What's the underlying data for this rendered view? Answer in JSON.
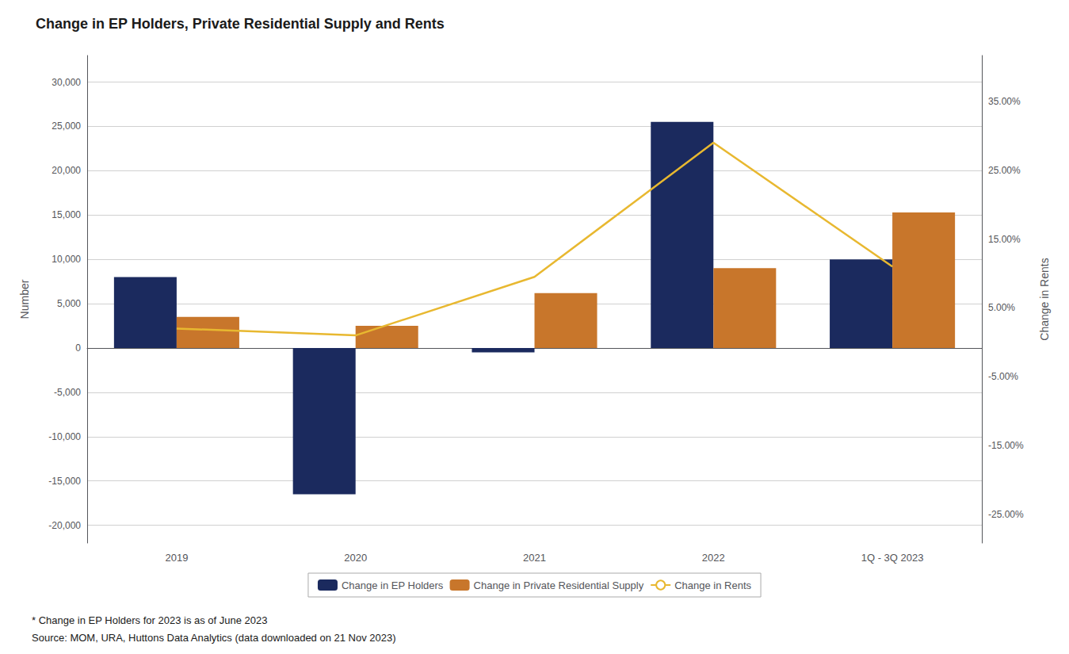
{
  "chart_data": {
    "type": "bar",
    "title": "Change in EP Holders, Private Residential Supply and Rents",
    "categories": [
      "2019",
      "2020",
      "2021",
      "2022",
      "1Q - 3Q 2023"
    ],
    "series": [
      {
        "name": "Change in EP Holders",
        "color": "#1b2a5e",
        "values": [
          8000,
          -16500,
          -500,
          25500,
          10000
        ]
      },
      {
        "name": "Change in Private Residential Supply",
        "color": "#c8762b",
        "values": [
          3500,
          2500,
          6200,
          9000,
          15300
        ]
      },
      {
        "name": "Change in Rents",
        "type": "line",
        "axis": "y2",
        "color": "#e8b830",
        "values": [
          0.02,
          0.01,
          0.095,
          0.29,
          0.11
        ]
      }
    ],
    "ylim": [
      -22000,
      33000
    ],
    "yticks": [
      {
        "value": -20000,
        "label": "-20,000"
      },
      {
        "value": -15000,
        "label": "-15,000"
      },
      {
        "value": -10000,
        "label": "-10,000"
      },
      {
        "value": -5000,
        "label": "-5,000"
      },
      0,
      {
        "value": 5000,
        "label": "5,000"
      },
      {
        "value": 10000,
        "label": "10,000"
      },
      {
        "value": 15000,
        "label": "15,000"
      },
      {
        "value": 20000,
        "label": "20,000"
      },
      {
        "value": 25000,
        "label": "25,000"
      },
      {
        "value": 30000,
        "label": "30,000"
      }
    ],
    "y2lim": [
      -0.2917,
      0.4167
    ],
    "y2ticks": [
      {
        "value": -0.25,
        "label": "-25.00%"
      },
      {
        "value": -0.15,
        "label": "-15.00%"
      },
      {
        "value": -0.05,
        "label": "-5.00%"
      },
      {
        "value": 0.05,
        "label": "5.00%"
      },
      {
        "value": 0.15,
        "label": "15.00%"
      },
      {
        "value": 0.25,
        "label": "25.00%"
      },
      {
        "value": 0.35,
        "label": "35.00%"
      }
    ],
    "ylabel": "Number",
    "y2label": "Change in Rents",
    "grid": true,
    "legend": "bottom",
    "annotations": [
      "* Change in EP Holders for 2023 is as of June 2023",
      "Source: MOM, URA, Huttons Data Analytics (data downloaded on 21 Nov 2023)"
    ]
  }
}
